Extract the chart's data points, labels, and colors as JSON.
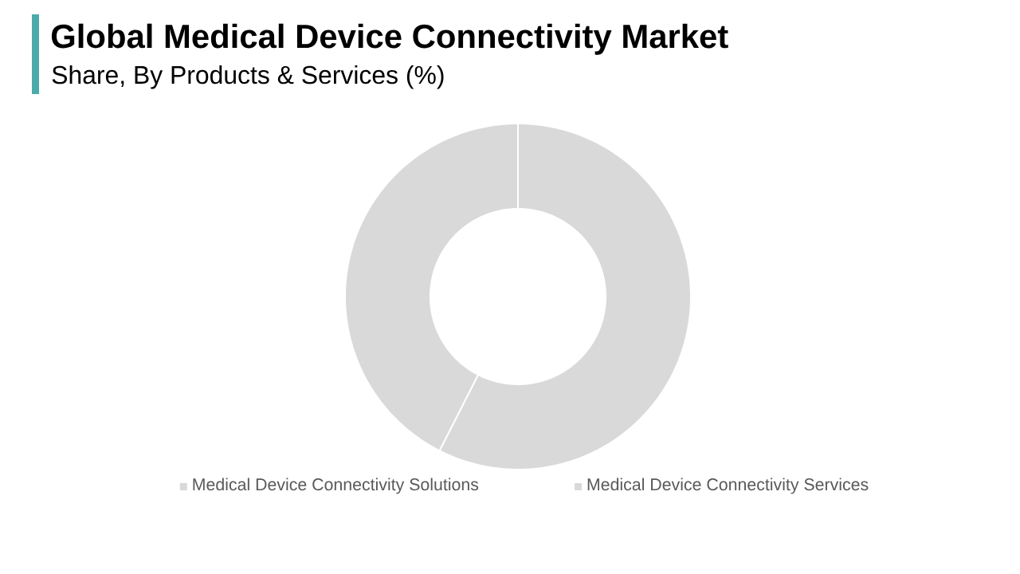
{
  "chart_data": {
    "type": "donut",
    "title": "Global Medical Device Connectivity Market",
    "subtitle": "Share, By Products & Services (%)",
    "categories": [
      "Medical Device Connectivity Solutions",
      "Medical Device Connectivity Services"
    ],
    "values": [
      57.5,
      42.5
    ],
    "colors": [
      "#d9d9d9",
      "#d9d9d9"
    ],
    "legend": "bottom"
  }
}
